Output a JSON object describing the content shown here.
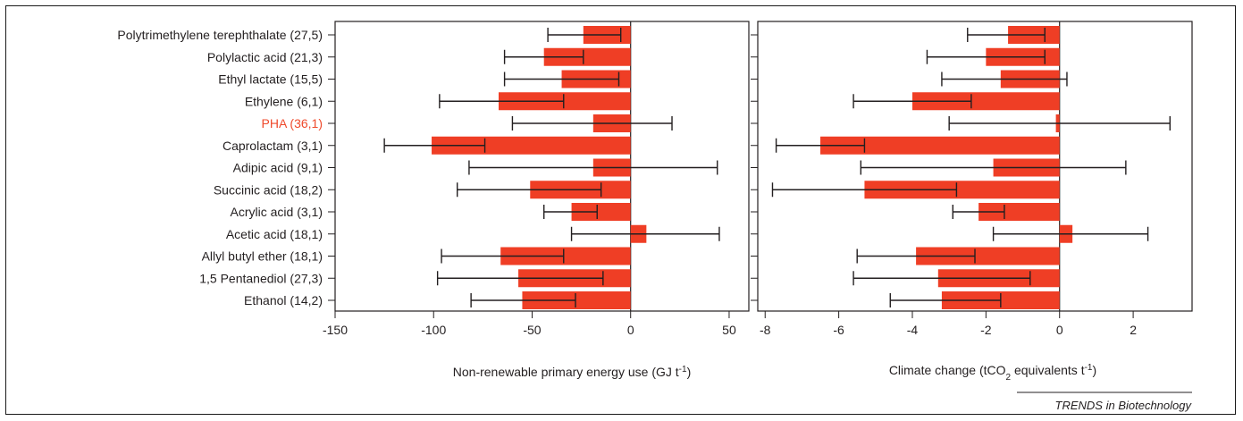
{
  "chart_data": [
    {
      "type": "bar",
      "orientation": "horizontal",
      "categories": [
        "Polytrimethylene terephthalate (27,5)",
        "Polylactic acid (21,3)",
        "Ethyl lactate (15,5)",
        "Ethylene (6,1)",
        "PHA (36,1)",
        "Caprolactam (3,1)",
        "Adipic acid (9,1)",
        "Succinic acid (18,2)",
        "Acrylic acid (3,1)",
        "Acetic acid (18,1)",
        "Allyl butyl ether (18,1)",
        "1,5 Pentanediol (27,3)",
        "Ethanol (14,2)"
      ],
      "highlight_category": "PHA (36,1)",
      "values": [
        -24,
        -44,
        -35,
        -67,
        -19,
        -101,
        -19,
        -51,
        -30,
        8,
        -66,
        -57,
        -55
      ],
      "error_low": [
        -42,
        -64,
        -64,
        -97,
        -60,
        -125,
        -82,
        -88,
        -44,
        -30,
        -96,
        -98,
        -81
      ],
      "error_high": [
        -5,
        -24,
        -6,
        -34,
        21,
        -74,
        44,
        -15,
        -17,
        45,
        -34,
        -14,
        -28
      ],
      "xlabel_main": "Non-renewable primary energy use (GJ t",
      "xlabel_sup": "-1",
      "xlabel_end": ")",
      "xlim": [
        -150,
        60
      ],
      "xticks": [
        "-150",
        "-100",
        "-50",
        "0",
        "50"
      ],
      "xtick_values": [
        -150,
        -100,
        -50,
        0,
        50
      ],
      "bar_color": "#ef3e25"
    },
    {
      "type": "bar",
      "orientation": "horizontal",
      "categories": [
        "Polytrimethylene terephthalate (27,5)",
        "Polylactic acid (21,3)",
        "Ethyl lactate (15,5)",
        "Ethylene (6,1)",
        "PHA (36,1)",
        "Caprolactam (3,1)",
        "Adipic acid (9,1)",
        "Succinic acid (18,2)",
        "Acrylic acid (3,1)",
        "Acetic acid (18,1)",
        "Allyl butyl ether (18,1)",
        "1,5 Pentanediol (27,3)",
        "Ethanol (14,2)"
      ],
      "values": [
        -1.4,
        -2.0,
        -1.6,
        -4.0,
        -0.1,
        -6.5,
        -1.8,
        -5.3,
        -2.2,
        0.35,
        -3.9,
        -3.3,
        -3.2
      ],
      "error_low": [
        -2.5,
        -3.6,
        -3.2,
        -5.6,
        -3.0,
        -7.7,
        -5.4,
        -7.8,
        -2.9,
        -1.8,
        -5.5,
        -5.6,
        -4.6
      ],
      "error_high": [
        -0.4,
        -0.4,
        0.2,
        -2.4,
        3.0,
        -5.3,
        1.8,
        -2.8,
        -1.5,
        2.4,
        -2.3,
        -0.8,
        -1.6
      ],
      "xlabel_main": "Climate change (tCO",
      "xlabel_sub": "2",
      "xlabel_mid": " equivalents t",
      "xlabel_sup": "-1",
      "xlabel_end": ")",
      "xlim": [
        -8.2,
        3.6
      ],
      "xticks": [
        "-8",
        "-6",
        "-4",
        "-2",
        "0",
        "2"
      ],
      "xtick_values": [
        -8,
        -6,
        -4,
        -2,
        0,
        2
      ],
      "bar_color": "#ef3e25"
    }
  ],
  "credit": "TRENDS in Biotechnology",
  "colors": {
    "bar": "#ef3e25",
    "highlight_label": "#ef4a2c",
    "ink": "#231f20"
  }
}
